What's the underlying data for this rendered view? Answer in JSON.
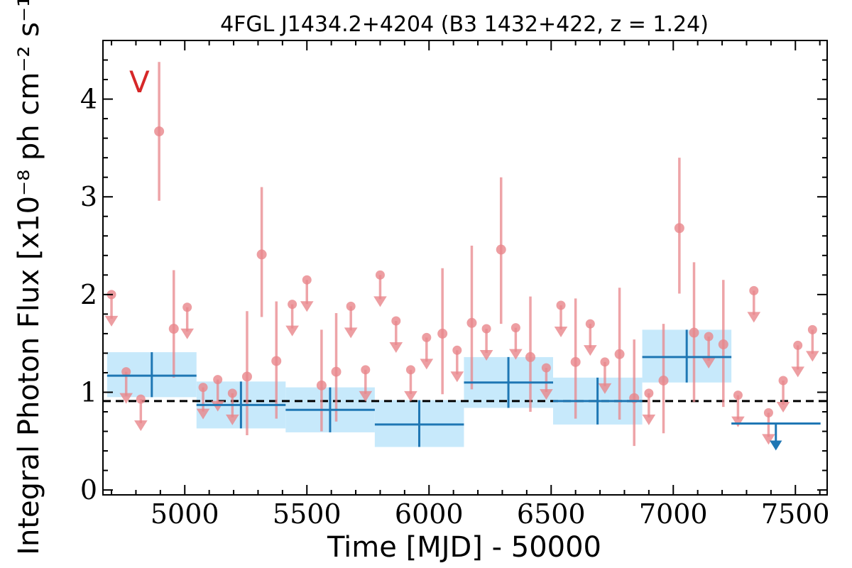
{
  "chart_data": {
    "type": "scatter",
    "title": "4FGL J1434.2+4204 (B3 1432+422, z = 1.24)",
    "xlabel": "Time [MJD] - 50000",
    "ylabel": "Integral Photon Flux [x10⁻⁸ ph cm⁻² s⁻¹]",
    "panel_label": "V",
    "xlim": [
      4665,
      7630
    ],
    "ylim": [
      -0.05,
      4.6
    ],
    "xticks": [
      5000,
      5500,
      6000,
      6500,
      7000,
      7500
    ],
    "xtick_labels": [
      "5000",
      "5500",
      "6000",
      "6500",
      "7000",
      "7500"
    ],
    "yticks": [
      0,
      1,
      2,
      3,
      4
    ],
    "ytick_labels": [
      "0",
      "1",
      "2",
      "3",
      "4"
    ],
    "mean_flux": 0.91,
    "colors": {
      "short_bins": "#e8868b",
      "long_bins": "#1f77b4",
      "long_band": "#c7e9fb",
      "mean_line": "#000000",
      "panel_label": "#d62728"
    },
    "series": [
      {
        "kind": "short_bins",
        "detections": [
          {
            "x": 4895,
            "y": 3.67,
            "ylo": 2.96,
            "yhi": 4.38
          },
          {
            "x": 4955,
            "y": 1.65,
            "ylo": 1.15,
            "yhi": 2.25
          },
          {
            "x": 5255,
            "y": 1.16,
            "ylo": 0.56,
            "yhi": 1.83
          },
          {
            "x": 5315,
            "y": 2.41,
            "ylo": 1.77,
            "yhi": 3.1
          },
          {
            "x": 5375,
            "y": 1.32,
            "ylo": 0.73,
            "yhi": 1.93
          },
          {
            "x": 5560,
            "y": 1.07,
            "ylo": 0.6,
            "yhi": 1.64
          },
          {
            "x": 5620,
            "y": 1.21,
            "ylo": 0.7,
            "yhi": 1.81
          },
          {
            "x": 6055,
            "y": 1.6,
            "ylo": 0.98,
            "yhi": 2.27
          },
          {
            "x": 6175,
            "y": 1.71,
            "ylo": 1.03,
            "yhi": 2.5
          },
          {
            "x": 6295,
            "y": 2.46,
            "ylo": 1.7,
            "yhi": 3.2
          },
          {
            "x": 6415,
            "y": 1.36,
            "ylo": 0.8,
            "yhi": 1.98
          },
          {
            "x": 6600,
            "y": 1.31,
            "ylo": 0.73,
            "yhi": 1.96
          },
          {
            "x": 6780,
            "y": 1.39,
            "ylo": 0.72,
            "yhi": 2.07
          },
          {
            "x": 6840,
            "y": 0.94,
            "ylo": 0.45,
            "yhi": 1.54
          },
          {
            "x": 6960,
            "y": 1.12,
            "ylo": 0.58,
            "yhi": 1.7
          },
          {
            "x": 7025,
            "y": 2.68,
            "ylo": 2.01,
            "yhi": 3.4
          },
          {
            "x": 7085,
            "y": 1.61,
            "ylo": 0.9,
            "yhi": 2.33
          },
          {
            "x": 7205,
            "y": 1.49,
            "ylo": 0.85,
            "yhi": 2.15
          }
        ],
        "upper_limits": [
          {
            "x": 4700,
            "y": 2.0
          },
          {
            "x": 4760,
            "y": 1.21
          },
          {
            "x": 4820,
            "y": 0.93
          },
          {
            "x": 5010,
            "y": 1.87
          },
          {
            "x": 5075,
            "y": 1.05
          },
          {
            "x": 5135,
            "y": 1.13
          },
          {
            "x": 5195,
            "y": 0.99
          },
          {
            "x": 5440,
            "y": 1.9
          },
          {
            "x": 5500,
            "y": 2.15
          },
          {
            "x": 5680,
            "y": 1.88
          },
          {
            "x": 5740,
            "y": 1.23
          },
          {
            "x": 5800,
            "y": 2.2
          },
          {
            "x": 5865,
            "y": 1.73
          },
          {
            "x": 5925,
            "y": 1.23
          },
          {
            "x": 5990,
            "y": 1.56
          },
          {
            "x": 6115,
            "y": 1.43
          },
          {
            "x": 6235,
            "y": 1.65
          },
          {
            "x": 6355,
            "y": 1.66
          },
          {
            "x": 6480,
            "y": 1.25
          },
          {
            "x": 6540,
            "y": 1.89
          },
          {
            "x": 6660,
            "y": 1.7
          },
          {
            "x": 6720,
            "y": 1.31
          },
          {
            "x": 6900,
            "y": 0.99
          },
          {
            "x": 7145,
            "y": 1.57
          },
          {
            "x": 7265,
            "y": 0.97
          },
          {
            "x": 7330,
            "y": 2.04
          },
          {
            "x": 7390,
            "y": 0.79
          },
          {
            "x": 7450,
            "y": 1.12
          },
          {
            "x": 7510,
            "y": 1.48
          },
          {
            "x": 7570,
            "y": 1.64
          }
        ]
      },
      {
        "kind": "long_bins",
        "detections": [
          {
            "x": 4865,
            "y": 1.17,
            "xlo": 4682,
            "xhi": 5048,
            "ylo": 0.95,
            "yhi": 1.41
          },
          {
            "x": 5230,
            "y": 0.87,
            "xlo": 5048,
            "xhi": 5413,
            "ylo": 0.63,
            "yhi": 1.11
          },
          {
            "x": 5595,
            "y": 0.82,
            "xlo": 5413,
            "xhi": 5778,
            "ylo": 0.59,
            "yhi": 1.05
          },
          {
            "x": 5960,
            "y": 0.67,
            "xlo": 5778,
            "xhi": 6143,
            "ylo": 0.44,
            "yhi": 0.92
          },
          {
            "x": 6325,
            "y": 1.1,
            "xlo": 6143,
            "xhi": 6508,
            "ylo": 0.84,
            "yhi": 1.36
          },
          {
            "x": 6690,
            "y": 0.91,
            "xlo": 6508,
            "xhi": 6873,
            "ylo": 0.67,
            "yhi": 1.15
          },
          {
            "x": 7055,
            "y": 1.36,
            "xlo": 6873,
            "xhi": 7238,
            "ylo": 1.1,
            "yhi": 1.64
          }
        ],
        "upper_limits": [
          {
            "x": 7420,
            "y": 0.68,
            "xlo": 7238,
            "xhi": 7603
          }
        ]
      }
    ]
  }
}
